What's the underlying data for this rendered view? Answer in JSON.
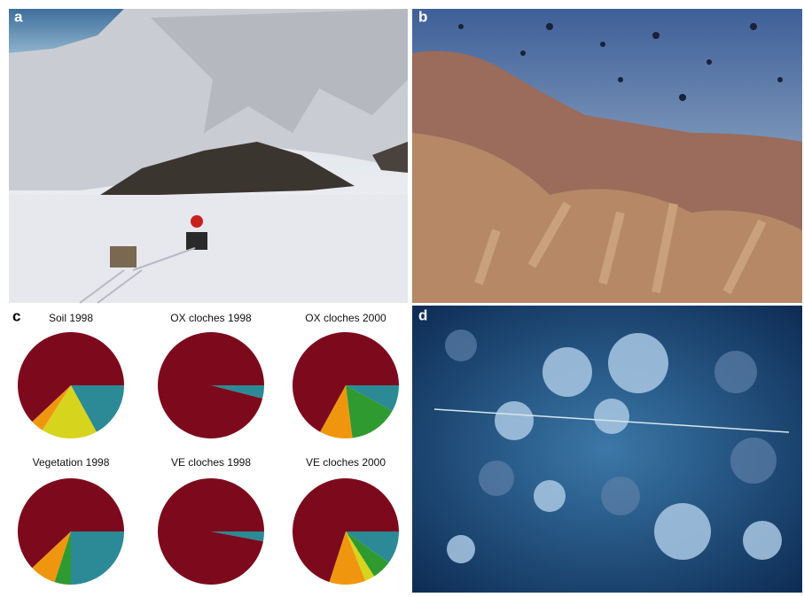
{
  "panel_labels": [
    "a",
    "b",
    "c",
    "d"
  ],
  "chart_data": [
    {
      "type": "pie",
      "title": "Soil 1998",
      "values": [
        17,
        17,
        4,
        62
      ],
      "colors": [
        "#2b8a96",
        "#d6d41c",
        "#f0960e",
        "#7d0a1c"
      ]
    },
    {
      "type": "pie",
      "title": "OX cloches 1998",
      "values": [
        4,
        96
      ],
      "colors": [
        "#2b8a96",
        "#7d0a1c"
      ]
    },
    {
      "type": "pie",
      "title": "OX cloches 2000",
      "values": [
        8,
        15,
        10,
        67
      ],
      "colors": [
        "#2b8a96",
        "#2f9a30",
        "#f0960e",
        "#7d0a1c"
      ]
    },
    {
      "type": "pie",
      "title": "Vegetation 1998",
      "values": [
        25,
        5,
        8,
        62
      ],
      "colors": [
        "#2b8a96",
        "#2f9a30",
        "#f0960e",
        "#7d0a1c"
      ]
    },
    {
      "type": "pie",
      "title": "VE cloches 1998",
      "values": [
        3,
        97
      ],
      "colors": [
        "#2b8a96",
        "#7d0a1c"
      ]
    },
    {
      "type": "pie",
      "title": "VE cloches 2000",
      "values": [
        10,
        6,
        3,
        11,
        70
      ],
      "colors": [
        "#2b8a96",
        "#2f9a30",
        "#d6d41c",
        "#f0960e",
        "#7d0a1c"
      ]
    }
  ]
}
